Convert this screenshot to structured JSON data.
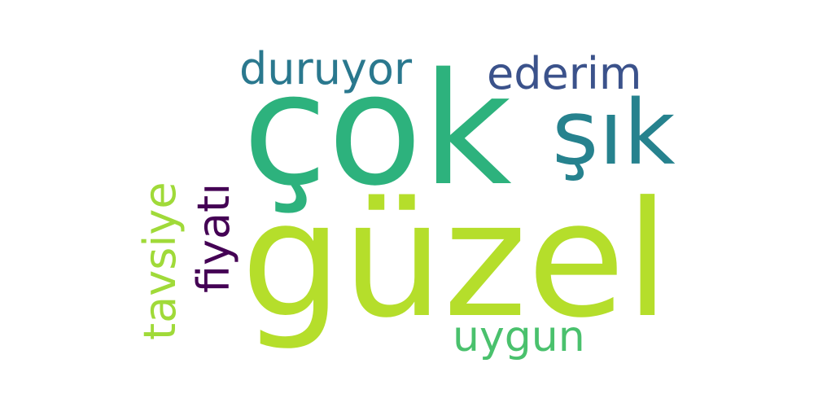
{
  "words": {
    "guzel": {
      "text": "güzel",
      "color": "#b5de2b"
    },
    "cok": {
      "text": "çok",
      "color": "#2db27d"
    },
    "sik": {
      "text": "şık",
      "color": "#26828e"
    },
    "duruyor": {
      "text": "duruyor",
      "color": "#2a788e"
    },
    "ederim": {
      "text": "ederim",
      "color": "#3b528b"
    },
    "uygun": {
      "text": "uygun",
      "color": "#4ac16d"
    },
    "fiyati": {
      "text": "fiyatı",
      "color": "#440154"
    },
    "tavsiye": {
      "text": "tavsiye",
      "color": "#a0da39"
    }
  }
}
